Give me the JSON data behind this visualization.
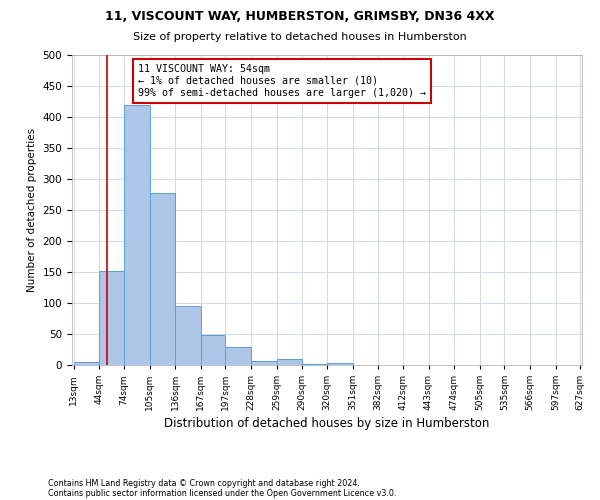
{
  "title1": "11, VISCOUNT WAY, HUMBERSTON, GRIMSBY, DN36 4XX",
  "title2": "Size of property relative to detached houses in Humberston",
  "xlabel": "Distribution of detached houses by size in Humberston",
  "ylabel": "Number of detached properties",
  "footnote1": "Contains HM Land Registry data © Crown copyright and database right 2024.",
  "footnote2": "Contains public sector information licensed under the Open Government Licence v3.0.",
  "annotation_line1": "11 VISCOUNT WAY: 54sqm",
  "annotation_line2": "← 1% of detached houses are smaller (10)",
  "annotation_line3": "99% of semi-detached houses are larger (1,020) →",
  "bar_edges": [
    13,
    44,
    74,
    105,
    136,
    167,
    197,
    228,
    259,
    290,
    320,
    351,
    382,
    412,
    443,
    474,
    505,
    535,
    566,
    597,
    627
  ],
  "bar_heights": [
    5,
    152,
    419,
    277,
    95,
    48,
    29,
    6,
    10,
    1,
    3,
    0,
    0,
    0,
    0,
    0,
    0,
    0,
    0,
    0
  ],
  "bar_color": "#aec6e8",
  "bar_edge_color": "#5a9fd4",
  "property_line_x": 54,
  "ylim": [
    0,
    500
  ],
  "yticks": [
    0,
    50,
    100,
    150,
    200,
    250,
    300,
    350,
    400,
    450,
    500
  ],
  "annotation_box_color": "#cc0000",
  "annotation_box_fill": "#ffffff",
  "property_line_color": "#cc0000",
  "background_color": "#ffffff",
  "grid_color": "#d0d8e8"
}
